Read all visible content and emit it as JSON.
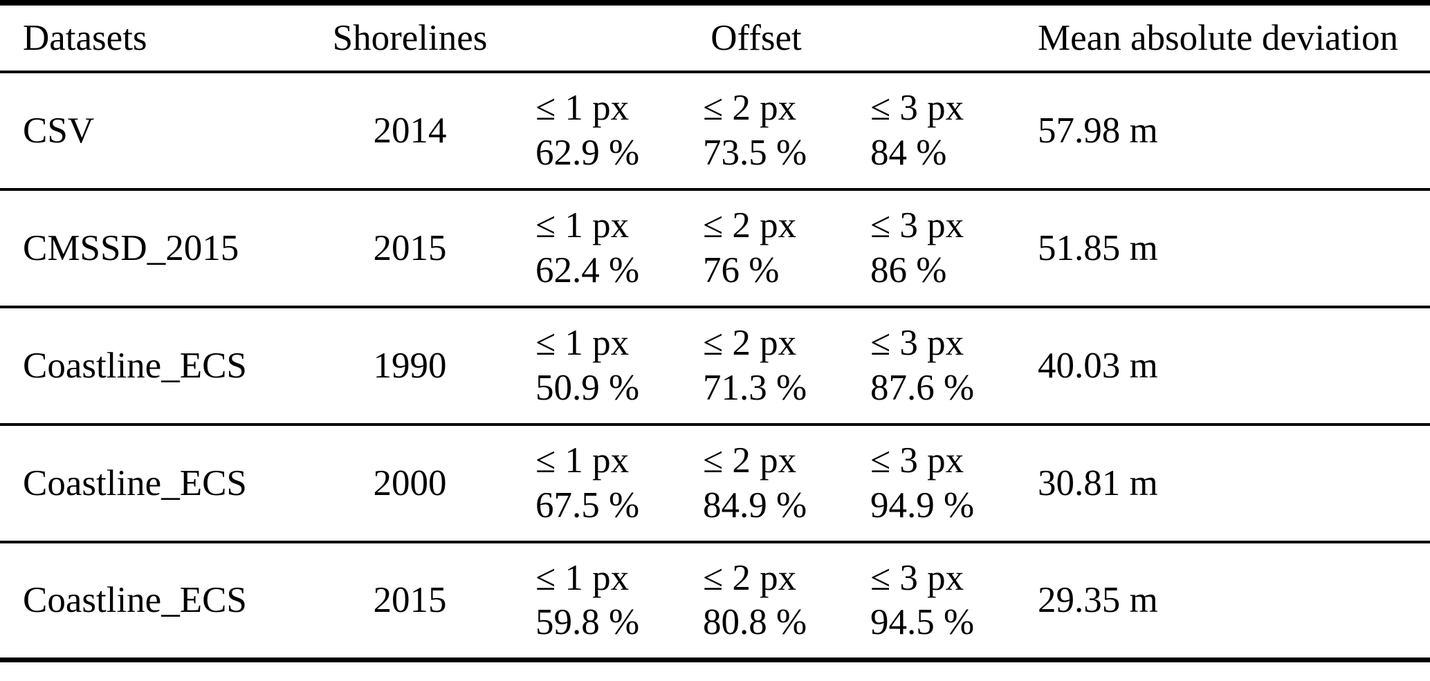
{
  "table": {
    "header": {
      "datasets": "Datasets",
      "shorelines": "Shorelines",
      "offset": "Offset",
      "mad": "Mean absolute deviation"
    },
    "rows": [
      {
        "dataset": "CSV",
        "shorelines": "2014",
        "offsets": [
          {
            "label": "≤ 1 px",
            "value": "62.9 %"
          },
          {
            "label": "≤ 2 px",
            "value": "73.5 %"
          },
          {
            "label": "≤ 3 px",
            "value": "84 %"
          }
        ],
        "mad": "57.98 m"
      },
      {
        "dataset": "CMSSD_2015",
        "shorelines": "2015",
        "offsets": [
          {
            "label": "≤ 1 px",
            "value": "62.4 %"
          },
          {
            "label": "≤ 2 px",
            "value": "76 %"
          },
          {
            "label": "≤ 3 px",
            "value": "86 %"
          }
        ],
        "mad": "51.85 m"
      },
      {
        "dataset": "Coastline_ECS",
        "shorelines": "1990",
        "offsets": [
          {
            "label": "≤ 1 px",
            "value": "50.9 %"
          },
          {
            "label": "≤ 2 px",
            "value": "71.3 %"
          },
          {
            "label": "≤ 3 px",
            "value": "87.6 %"
          }
        ],
        "mad": "40.03 m"
      },
      {
        "dataset": "Coastline_ECS",
        "shorelines": "2000",
        "offsets": [
          {
            "label": "≤ 1 px",
            "value": "67.5 %"
          },
          {
            "label": "≤ 2 px",
            "value": "84.9 %"
          },
          {
            "label": "≤ 3 px",
            "value": "94.9 %"
          }
        ],
        "mad": "30.81 m"
      },
      {
        "dataset": "Coastline_ECS",
        "shorelines": "2015",
        "offsets": [
          {
            "label": "≤ 1 px",
            "value": "59.8 %"
          },
          {
            "label": "≤ 2 px",
            "value": "80.8 %"
          },
          {
            "label": "≤ 3 px",
            "value": "94.5 %"
          }
        ],
        "mad": "29.35 m"
      }
    ],
    "colors": {
      "text": "#000000",
      "background": "#ffffff",
      "rule": "#000000"
    }
  }
}
